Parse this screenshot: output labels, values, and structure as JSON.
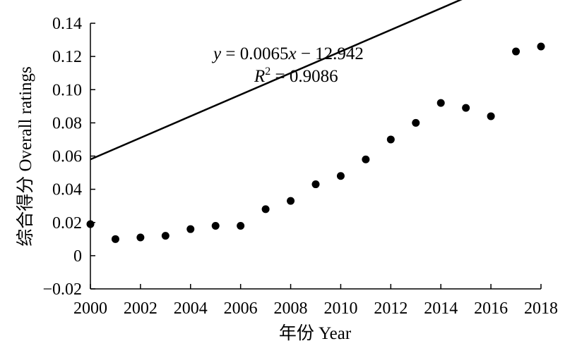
{
  "chart_data": {
    "type": "scatter",
    "xlabel": "年份 Year",
    "ylabel": "综合得分 Overall ratings",
    "xlim": [
      2000,
      2018
    ],
    "ylim": [
      -0.02,
      0.14
    ],
    "xticks": [
      "2000",
      "2002",
      "2004",
      "2006",
      "2008",
      "2010",
      "2012",
      "2014",
      "2016",
      "2018"
    ],
    "yticks": [
      "−0.02",
      "0",
      "0.02",
      "0.04",
      "0.06",
      "0.08",
      "0.10",
      "0.12",
      "0.14"
    ],
    "grid": false,
    "series": [
      {
        "x": [
          2000,
          2001,
          2002,
          2003,
          2004,
          2005,
          2006,
          2007,
          2008,
          2009,
          2010,
          2011,
          2012,
          2013,
          2014,
          2015,
          2016,
          2017,
          2018
        ],
        "y": [
          0.019,
          0.01,
          0.011,
          0.012,
          0.016,
          0.018,
          0.018,
          0.028,
          0.033,
          0.043,
          0.048,
          0.058,
          0.07,
          0.08,
          0.092,
          0.089,
          0.084,
          0.123,
          0.126
        ]
      }
    ],
    "trendline": {
      "slope": 0.0065,
      "intercept": -12.942
    },
    "annotations": {
      "equation_prefix": "y",
      "equation_rest": " = 0.0065",
      "equation_x": "x",
      "equation_tail": " −  12.942",
      "r2_base": "R",
      "r2_sup": "2",
      "r2_value": " = 0.9086"
    },
    "colors": {
      "marker": "#000000",
      "line": "#000000",
      "axis": "#000000"
    }
  }
}
